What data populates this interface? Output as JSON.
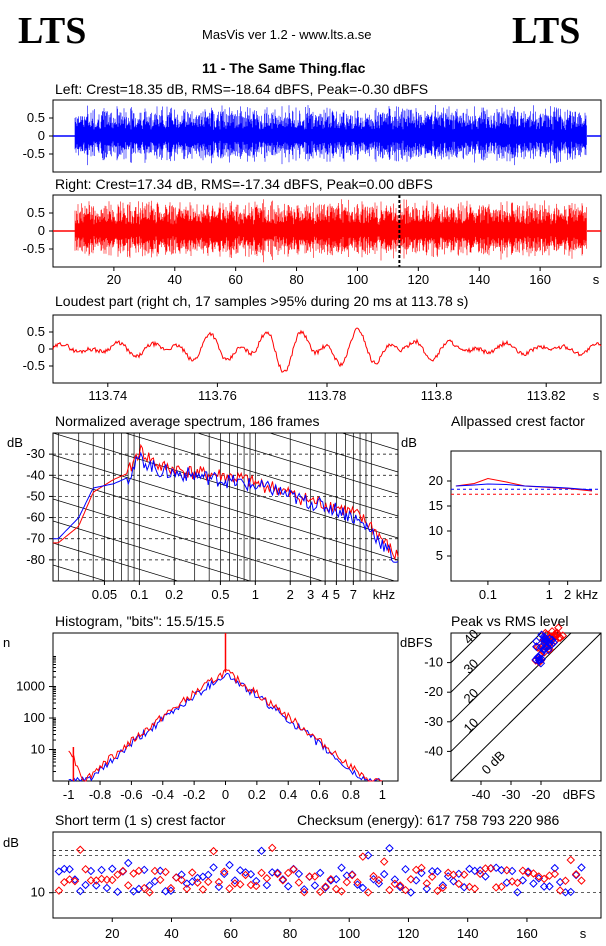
{
  "header": {
    "logo_left": "LTS",
    "logo_right": "LTS",
    "app_title": "MasVis ver 1.2 - www.lts.a.se",
    "file_name": "11 - The Same Thing.flac"
  },
  "colors": {
    "left": "#0000ff",
    "right": "#ff0000"
  },
  "panels": {
    "left_wave_title": "Left: Crest=18.35 dB, RMS=-18.64 dBFS, Peak=-0.30 dBFS",
    "right_wave_title": "Right: Crest=17.34 dB, RMS=-17.34 dBFS, Peak=0.00 dBFS",
    "loudest_title": "Loudest part (right ch, 17 samples >95% during 20 ms at 113.78 s)",
    "spectrum_title": "Normalized average spectrum, 186 frames",
    "allpass_title": "Allpassed crest factor",
    "hist_title": "Histogram, \"bits\": 15.5/15.5",
    "pvr_title": "Peak vs RMS level",
    "st_title": "Short term (1 s) crest factor",
    "checksum": "Checksum (energy):   617 758 793 220 986"
  },
  "chart_data": [
    {
      "id": "left_wave",
      "type": "line",
      "series_color": "blue",
      "x_range": [
        0,
        180
      ],
      "x_unit": "s",
      "y_ticks": [
        "0.5",
        "0",
        "-0.5"
      ],
      "y_range": [
        -1,
        1
      ],
      "crest_db": 18.35,
      "rms_dbfs": -18.64,
      "peak_dbfs": -0.3
    },
    {
      "id": "right_wave",
      "type": "line",
      "series_color": "red",
      "x_range": [
        0,
        180
      ],
      "x_unit": "s",
      "x_ticks": [
        "20",
        "40",
        "60",
        "80",
        "100",
        "120",
        "140",
        "160",
        "s"
      ],
      "y_ticks": [
        "0.5",
        "0",
        "-0.5"
      ],
      "y_range": [
        -1,
        1
      ],
      "marker_at": 113.78,
      "crest_db": 17.34,
      "rms_dbfs": -17.34,
      "peak_dbfs": 0.0
    },
    {
      "id": "loudest",
      "type": "line",
      "series_color": "red",
      "x_range": [
        113.73,
        113.83
      ],
      "x_ticks": [
        "113.74",
        "113.76",
        "113.78",
        "113.8",
        "113.82",
        "s"
      ],
      "y_ticks": [
        "0.5",
        "0",
        "-0.5"
      ],
      "y_range": [
        -1,
        1
      ]
    },
    {
      "id": "spectrum",
      "type": "line",
      "x_scale": "log",
      "ylabel": "dB",
      "y_ticks": [
        "-30",
        "-40",
        "-50",
        "-60",
        "-70",
        "-80"
      ],
      "x_ticks": [
        "0.05",
        "0.1",
        "0.2",
        "0.5",
        "1",
        "2",
        "3",
        "4",
        "5",
        "7",
        "kHz"
      ],
      "x": [
        0.02,
        0.03,
        0.04,
        0.06,
        0.08,
        0.1,
        0.15,
        0.2,
        0.3,
        0.5,
        0.8,
        1,
        1.5,
        2,
        3,
        5,
        7,
        10,
        16
      ],
      "series": [
        {
          "color": "red",
          "values": [
            -72,
            -64,
            -48,
            -42,
            -39,
            -28,
            -36,
            -37,
            -39,
            -40,
            -42,
            -44,
            -46,
            -49,
            -52,
            -55,
            -58,
            -64,
            -78
          ]
        },
        {
          "color": "blue",
          "values": [
            -70,
            -60,
            -46,
            -44,
            -41,
            -32,
            -38,
            -39,
            -40,
            -42,
            -44,
            -45,
            -47,
            -50,
            -53,
            -56,
            -60,
            -66,
            -80
          ]
        }
      ]
    },
    {
      "id": "allpass",
      "type": "line",
      "x_scale": "log",
      "ylabel": "dB",
      "y_ticks": [
        "20",
        "15",
        "10",
        "5"
      ],
      "x_ticks": [
        "0.1",
        "1",
        "2",
        "kHz"
      ],
      "x": [
        0.03,
        0.06,
        0.1,
        0.2,
        0.4,
        1,
        2,
        5
      ],
      "series": [
        {
          "color": "red",
          "values": [
            19,
            19.5,
            20.5,
            19.8,
            19,
            18.7,
            18.5,
            18
          ]
        },
        {
          "color": "blue",
          "values": [
            19,
            19.2,
            19.4,
            19.3,
            19,
            18.8,
            18.6,
            18.2
          ]
        }
      ],
      "ref_lines": [
        18.35,
        17.34
      ]
    },
    {
      "id": "histogram",
      "type": "line",
      "y_scale": "log",
      "ylabel": "n",
      "y_ticks": [
        "1000",
        "100",
        "10"
      ],
      "x_ticks": [
        "-1",
        "-0.8",
        "-0.6",
        "-0.4",
        "-0.2",
        "0",
        "0.2",
        "0.4",
        "0.6",
        "0.8",
        "1"
      ],
      "x": [
        -1,
        -0.9,
        -0.8,
        -0.6,
        -0.4,
        -0.2,
        0,
        0.2,
        0.4,
        0.6,
        0.8,
        0.9,
        1
      ],
      "series": [
        {
          "color": "blue",
          "values": [
            1,
            1,
            2,
            15,
            90,
            500,
            2500,
            500,
            90,
            15,
            2,
            1,
            1
          ]
        },
        {
          "color": "red",
          "values": [
            12,
            1,
            3,
            18,
            110,
            600,
            3000,
            600,
            110,
            18,
            3,
            1,
            1
          ]
        }
      ]
    },
    {
      "id": "peak_vs_rms",
      "type": "scatter",
      "ylabel": "dBFS",
      "xlabel": "dBFS",
      "y_ticks": [
        "-10",
        "-20",
        "-30",
        "-40"
      ],
      "x_ticks": [
        "-40",
        "-30",
        "-20"
      ],
      "diag_labels": [
        "40",
        "30",
        "20",
        "10",
        "0 dB"
      ],
      "series": [
        {
          "color": "red",
          "x": [
            -18,
            -17,
            -16,
            -19,
            -15,
            -20,
            -17,
            -18,
            -16,
            -21,
            -14
          ],
          "y": [
            -2,
            -1,
            -3,
            -4,
            0,
            -6,
            -2,
            -5,
            -1,
            -8,
            -2
          ]
        },
        {
          "color": "blue",
          "x": [
            -19,
            -20,
            -18,
            -22,
            -17,
            -21,
            -19
          ],
          "y": [
            -3,
            -4,
            -2,
            -9,
            -3,
            -7,
            -5
          ]
        }
      ]
    },
    {
      "id": "short_term",
      "type": "scatter",
      "ylabel": "dB",
      "y_ticks": [
        "10"
      ],
      "x_ticks": [
        "20",
        "40",
        "60",
        "80",
        "100",
        "120",
        "140",
        "160",
        "s"
      ],
      "x_range": [
        0,
        185
      ],
      "y_range": [
        5,
        22
      ]
    }
  ]
}
